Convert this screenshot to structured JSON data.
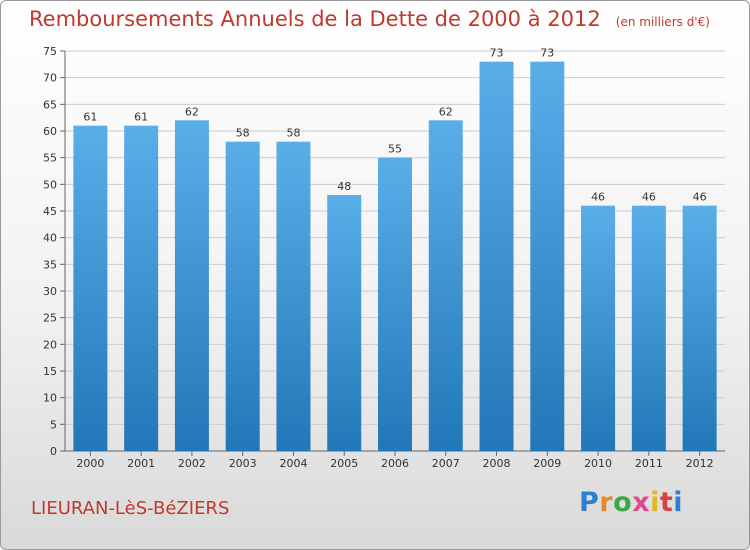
{
  "title": "Remboursements Annuels de la Dette de 2000 à 2012",
  "unit_note": "(en milliers d'€)",
  "commune": "LIEURAN-LèS-BéZIERS",
  "logo": {
    "letters": [
      "P",
      "r",
      "o",
      "x",
      "i",
      "t",
      "i"
    ]
  },
  "colors": {
    "bar_top": "#5aaee8",
    "bar_bottom": "#2277b8",
    "title": "#c0392b",
    "grid": "#cccccc"
  },
  "chart_data": {
    "type": "bar",
    "title": "Remboursements Annuels de la Dette de 2000 à 2012",
    "categories": [
      "2000",
      "2001",
      "2002",
      "2003",
      "2004",
      "2005",
      "2006",
      "2007",
      "2008",
      "2009",
      "2010",
      "2011",
      "2012"
    ],
    "values": [
      61,
      61,
      62,
      58,
      58,
      48,
      55,
      62,
      73,
      73,
      46,
      46,
      46
    ],
    "yticks": [
      0,
      5,
      10,
      15,
      20,
      25,
      30,
      35,
      40,
      45,
      50,
      55,
      60,
      65,
      70,
      75
    ],
    "ylim": [
      0,
      75
    ],
    "grid": true,
    "xlabel": "",
    "ylabel": ""
  }
}
